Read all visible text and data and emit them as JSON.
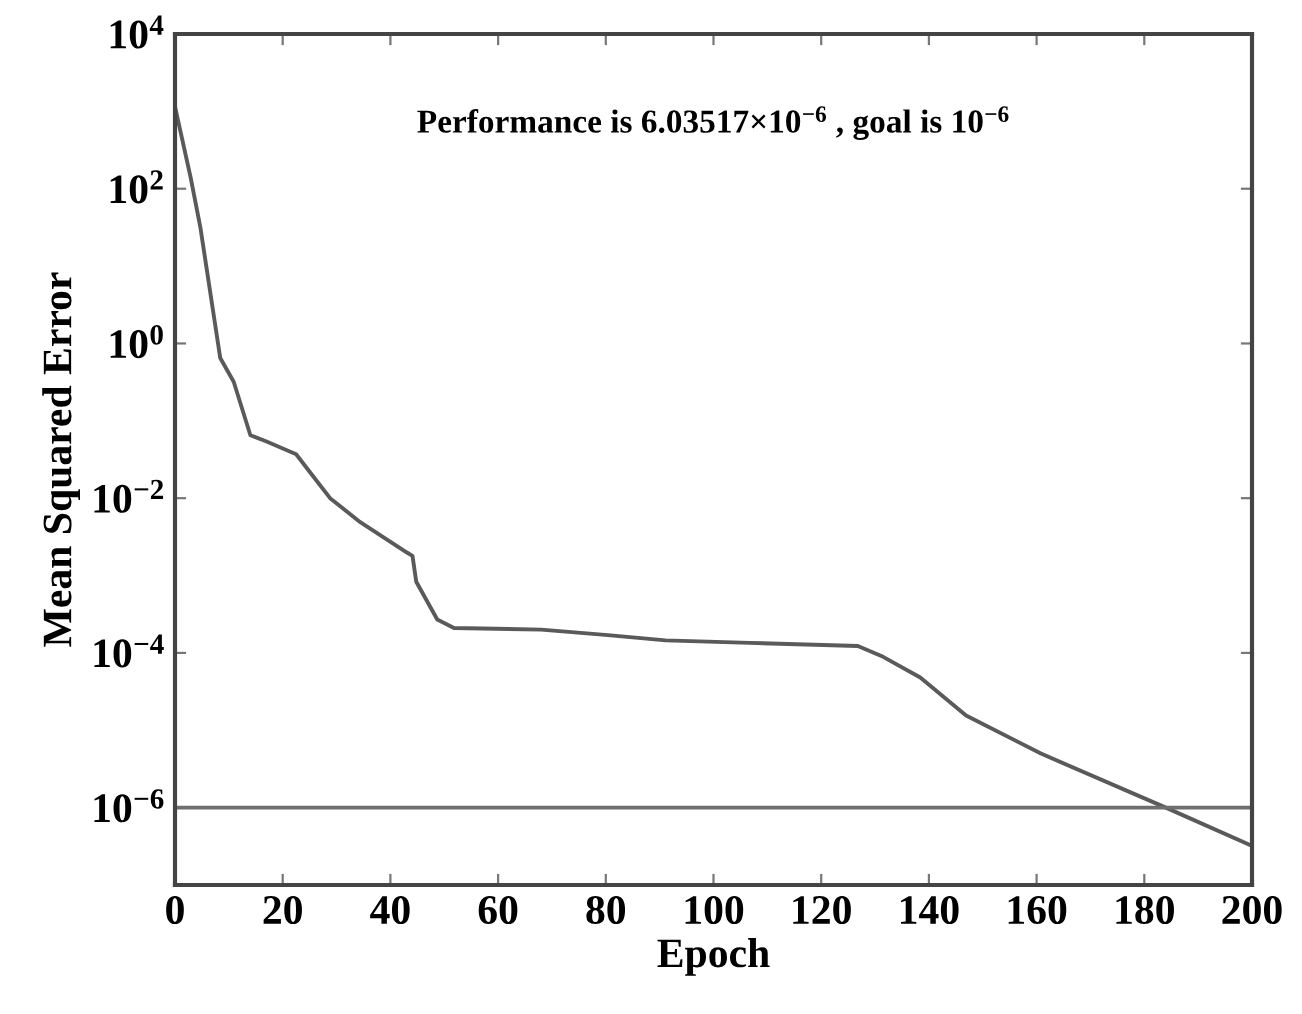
{
  "chart_data": {
    "type": "line",
    "xlabel": "Epoch",
    "ylabel": "Mean Squared Error",
    "annotations": [
      "Performance is 6.03517×10$^{−6}$ , goal is 10$^{−6}$"
    ],
    "log": "y",
    "grid": false,
    "marker": "none",
    "line_style": "solid",
    "xlim": [
      0,
      200
    ],
    "xticks": [
      0,
      20,
      40,
      60,
      80,
      100,
      120,
      140,
      160,
      180,
      200
    ],
    "ylim": [
      1e-07,
      10000
    ],
    "yticks": [
      {
        "value": 1e-06,
        "label": "10$^{−6}$"
      },
      {
        "value": 0.0001,
        "label": "10$^{−4}$"
      },
      {
        "value": 0.01,
        "label": "10$^{−2}$"
      },
      {
        "value": 1,
        "label": "10$^{0}$"
      },
      {
        "value": 100,
        "label": "10$^{2}$"
      },
      {
        "value": 10000,
        "label": "10$^{4}$"
      }
    ],
    "ref_lines": [
      {
        "axis": "y",
        "value": 1e-06,
        "color": "#6e6e6e"
      }
    ],
    "series": [
      {
        "color": "#5a5a5a",
        "x": [
          0,
          2.9,
          4.7,
          8.4,
          10.9,
          14,
          17,
          22.5,
          25,
          28.8,
          34.4,
          43,
          44.1,
          44.8,
          48.7,
          51.8,
          68,
          80.4,
          91.1,
          106.7,
          126.8,
          131.5,
          138.4,
          146.9,
          160.8,
          184,
          200
        ],
        "values": [
          1150,
          140,
          32,
          0.65,
          0.32,
          0.065,
          0.054,
          0.037,
          0.022,
          0.01,
          0.0049,
          0.002,
          0.0018,
          0.00083,
          0.00027,
          0.00021,
          0.0002,
          0.00017,
          0.000145,
          0.000135,
          0.000123,
          8.9e-05,
          4.8e-05,
          1.55e-05,
          5e-06,
          1e-06,
          3.2e-07
        ]
      }
    ]
  }
}
